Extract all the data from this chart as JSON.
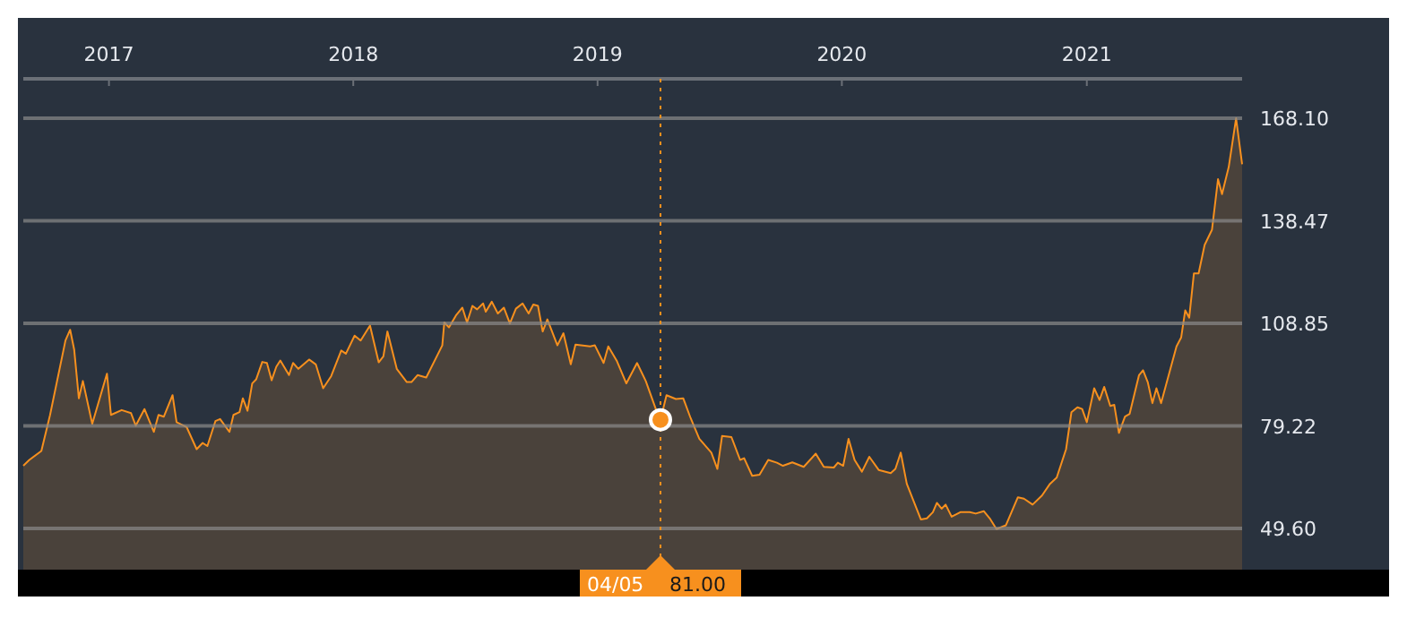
{
  "chart_data": {
    "type": "area",
    "xlim": [
      "2016-08-26",
      "2021-08-21"
    ],
    "ylim": [
      37.7,
      179.5
    ],
    "xticks": [
      "2017",
      "2018",
      "2019",
      "2020",
      "2021"
    ],
    "yticks": [
      {
        "value": 49.6,
        "label": "49.60"
      },
      79.22,
      108.85,
      138.47,
      {
        "value": 168.1,
        "label": "168.10"
      }
    ],
    "grid": "y",
    "series": [
      {
        "color": "#f7901e",
        "x": [
          "2016-08-26",
          "2016-09-04",
          "2016-09-22",
          "2016-10-05",
          "2016-10-28",
          "2016-11-04",
          "2016-11-10",
          "2016-11-17",
          "2016-11-23",
          "2016-12-07",
          "2016-12-29",
          "2017-01-04",
          "2017-01-20",
          "2017-02-03",
          "2017-02-10",
          "2017-02-23",
          "2017-03-09",
          "2017-03-16",
          "2017-03-24",
          "2017-04-06",
          "2017-04-12",
          "2017-04-27",
          "2017-05-12",
          "2017-05-21",
          "2017-05-28",
          "2017-06-09",
          "2017-06-16",
          "2017-06-30",
          "2017-07-06",
          "2017-07-15",
          "2017-07-20",
          "2017-07-27",
          "2017-08-03",
          "2017-08-09",
          "2017-08-18",
          "2017-08-25",
          "2017-09-01",
          "2017-09-08",
          "2017-09-14",
          "2017-09-27",
          "2017-10-03",
          "2017-10-11",
          "2017-10-27",
          "2017-11-06",
          "2017-11-17",
          "2017-11-29",
          "2017-12-14",
          "2017-12-21",
          "2018-01-03",
          "2018-01-12",
          "2018-01-26",
          "2018-02-08",
          "2018-02-15",
          "2018-02-21",
          "2018-03-07",
          "2018-03-22",
          "2018-03-29",
          "2018-04-07",
          "2018-04-20",
          "2018-05-14",
          "2018-05-17",
          "2018-05-24",
          "2018-06-04",
          "2018-06-13",
          "2018-06-20",
          "2018-06-28",
          "2018-07-05",
          "2018-07-14",
          "2018-07-18",
          "2018-07-27",
          "2018-08-05",
          "2018-08-14",
          "2018-08-23",
          "2018-09-01",
          "2018-09-11",
          "2018-09-20",
          "2018-09-27",
          "2018-10-04",
          "2018-10-11",
          "2018-10-18",
          "2018-11-02",
          "2018-11-11",
          "2018-11-22",
          "2018-11-29",
          "2018-12-21",
          "2018-12-28",
          "2019-01-10",
          "2019-01-17",
          "2019-01-30",
          "2019-02-13",
          "2019-03-01",
          "2019-03-14",
          "2019-03-29",
          "2019-04-05",
          "2019-04-14",
          "2019-04-28",
          "2019-05-09",
          "2019-05-20",
          "2019-06-02",
          "2019-06-20",
          "2019-06-29",
          "2019-07-06",
          "2019-07-20",
          "2019-08-02",
          "2019-08-08",
          "2019-08-20",
          "2019-08-31",
          "2019-09-13",
          "2019-09-26",
          "2019-10-05",
          "2019-10-19",
          "2019-11-05",
          "2019-11-23",
          "2019-12-05",
          "2019-12-20",
          "2019-12-26",
          "2020-01-03",
          "2020-01-11",
          "2020-01-20",
          "2020-01-31",
          "2020-02-11",
          "2020-02-25",
          "2020-03-14",
          "2020-03-21",
          "2020-03-29",
          "2020-04-07",
          "2020-04-28",
          "2020-05-07",
          "2020-05-16",
          "2020-05-22",
          "2020-05-29",
          "2020-06-04",
          "2020-06-13",
          "2020-06-26",
          "2020-07-10",
          "2020-07-19",
          "2020-07-31",
          "2020-08-09",
          "2020-08-19",
          "2020-09-02",
          "2020-09-20",
          "2020-09-29",
          "2020-10-12",
          "2020-10-26",
          "2020-11-07",
          "2020-11-17",
          "2020-12-01",
          "2020-12-09",
          "2020-12-18",
          "2020-12-25",
          "2021-01-01",
          "2021-01-12",
          "2021-01-20",
          "2021-01-27",
          "2021-02-05",
          "2021-02-11",
          "2021-02-18",
          "2021-02-27",
          "2021-03-06",
          "2021-03-20",
          "2021-03-26",
          "2021-04-02",
          "2021-04-09",
          "2021-04-15",
          "2021-04-22",
          "2021-05-15",
          "2021-05-22",
          "2021-05-28",
          "2021-06-03",
          "2021-06-10",
          "2021-06-17",
          "2021-06-26",
          "2021-07-07",
          "2021-07-16",
          "2021-07-22",
          "2021-08-01",
          "2021-08-12",
          "2021-08-21"
        ],
        "values": [
          67.7,
          69.4,
          72.0,
          82.4,
          103.9,
          107.0,
          101.3,
          87.2,
          92.2,
          79.8,
          94.3,
          82.4,
          83.8,
          82.9,
          79.3,
          84.1,
          77.5,
          82.4,
          81.9,
          88.1,
          80.3,
          78.9,
          72.5,
          74.3,
          73.4,
          80.6,
          81.2,
          77.5,
          82.4,
          83.2,
          87.2,
          83.6,
          91.5,
          92.7,
          97.7,
          97.4,
          92.4,
          96.3,
          98.1,
          93.9,
          97.4,
          95.7,
          98.4,
          97.0,
          90.1,
          93.6,
          101.0,
          100.1,
          105.3,
          103.9,
          108.2,
          97.6,
          99.3,
          106.5,
          95.7,
          91.9,
          91.9,
          93.9,
          93.2,
          102.5,
          109.1,
          107.7,
          111.3,
          113.4,
          109.1,
          113.9,
          112.9,
          114.6,
          112.2,
          115.1,
          111.7,
          113.4,
          108.8,
          113.1,
          114.6,
          111.7,
          114.3,
          113.9,
          106.5,
          110.0,
          102.5,
          106.0,
          97.0,
          102.7,
          102.2,
          102.5,
          97.4,
          102.2,
          97.9,
          91.5,
          97.4,
          92.2,
          84.1,
          81.0,
          88.1,
          87.0,
          87.2,
          81.5,
          75.5,
          71.5,
          66.8,
          76.3,
          76.0,
          69.4,
          69.9,
          64.8,
          65.1,
          69.4,
          68.6,
          67.7,
          68.7,
          67.4,
          71.2,
          67.4,
          67.2,
          68.6,
          67.7,
          75.5,
          69.4,
          66.0,
          70.3,
          66.5,
          65.6,
          66.8,
          71.5,
          62.5,
          52.2,
          52.5,
          54.3,
          57.0,
          55.3,
          56.5,
          53.0,
          54.3,
          54.3,
          53.9,
          54.6,
          52.5,
          49.4,
          50.5,
          58.6,
          58.2,
          56.5,
          59.1,
          62.5,
          64.3,
          72.5,
          83.2,
          84.6,
          84.1,
          80.3,
          90.1,
          86.7,
          90.5,
          85.0,
          85.3,
          77.2,
          81.9,
          82.7,
          93.9,
          95.3,
          91.9,
          85.8,
          90.1,
          85.8,
          102.2,
          104.8,
          112.6,
          110.5,
          123.3,
          123.3,
          131.5,
          135.9,
          150.5,
          146.2,
          154.0,
          168.1,
          154.8
        ]
      }
    ],
    "ref_lines": [
      {
        "axis": "x",
        "value": "2019-04-05",
        "label": "04/05",
        "color": "#f7901e",
        "line_style": "dotted"
      }
    ],
    "annotations": [
      "81.00"
    ]
  }
}
